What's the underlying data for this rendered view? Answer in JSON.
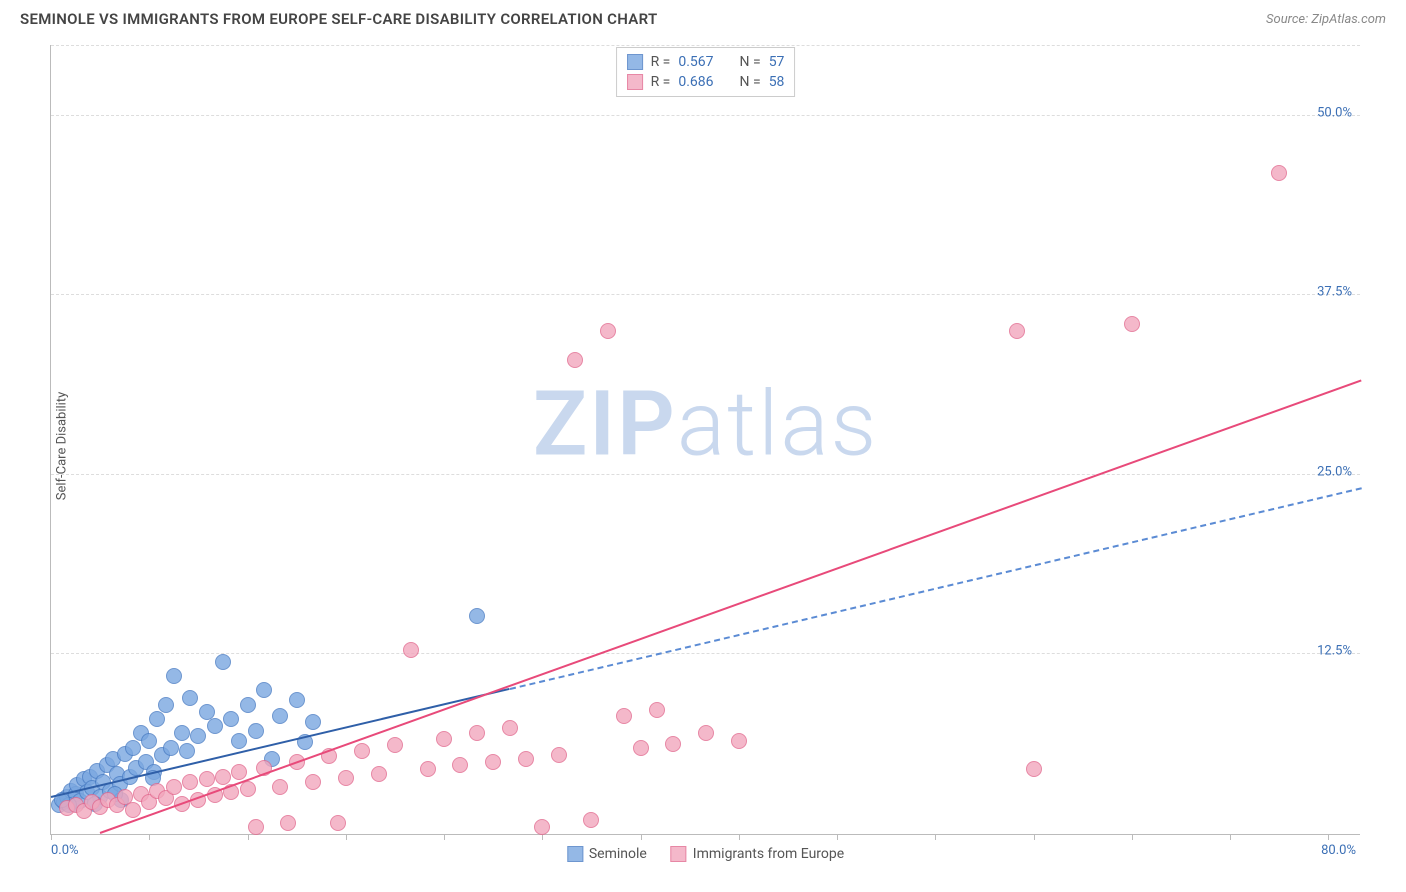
{
  "header": {
    "title": "SEMINOLE VS IMMIGRANTS FROM EUROPE SELF-CARE DISABILITY CORRELATION CHART",
    "source": "Source: ZipAtlas.com"
  },
  "watermark": {
    "part1": "ZIP",
    "part2": "atlas"
  },
  "chart": {
    "type": "scatter",
    "ylabel": "Self-Care Disability",
    "xlim": [
      0,
      80
    ],
    "ylim": [
      0,
      55
    ],
    "background_color": "#ffffff",
    "grid_color": "#dddddd",
    "axis_color": "#bbbbbb",
    "label_color": "#3b6fb5",
    "ylabel_color": "#555555",
    "title_fontsize": 15,
    "label_fontsize": 13,
    "yticks": [
      {
        "value": 12.5,
        "label": "12.5%"
      },
      {
        "value": 25.0,
        "label": "25.0%"
      },
      {
        "value": 37.5,
        "label": "37.5%"
      },
      {
        "value": 50.0,
        "label": "50.0%"
      }
    ],
    "xticks": [
      0,
      6,
      12,
      18,
      24,
      30,
      36,
      42,
      48,
      54,
      60,
      66,
      72,
      78
    ],
    "xorigin_label": "0.0%",
    "xmax_label": "80.0%",
    "marker_radius": 8,
    "marker_border_width": 1,
    "marker_fill_opacity": 0.35,
    "series": [
      {
        "key": "seminole",
        "name": "Seminole",
        "fill": "#7aa7e0",
        "stroke": "#4a7dc4",
        "line_color": "#2f5fa8",
        "line_width": 2,
        "line_style": "solid",
        "line_dashed_extension": true,
        "dash_color": "#5b8bd4",
        "r_value": "0.567",
        "n_value": "57",
        "trend": {
          "x1": 0,
          "y1": 2.5,
          "x2": 80,
          "y2": 24.0,
          "x_solid_end": 28
        },
        "points": [
          [
            0.5,
            2.0
          ],
          [
            0.8,
            2.2
          ],
          [
            1.0,
            2.6
          ],
          [
            1.2,
            3.0
          ],
          [
            1.4,
            2.1
          ],
          [
            1.5,
            2.8
          ],
          [
            1.6,
            3.4
          ],
          [
            1.8,
            2.3
          ],
          [
            2.0,
            3.8
          ],
          [
            2.2,
            2.9
          ],
          [
            2.4,
            4.0
          ],
          [
            2.5,
            3.2
          ],
          [
            2.8,
            4.4
          ],
          [
            3.0,
            2.6
          ],
          [
            3.2,
            3.6
          ],
          [
            3.4,
            4.8
          ],
          [
            3.6,
            3.0
          ],
          [
            3.8,
            5.2
          ],
          [
            4.0,
            4.2
          ],
          [
            4.2,
            3.5
          ],
          [
            4.5,
            5.6
          ],
          [
            4.8,
            4.0
          ],
          [
            5.0,
            6.0
          ],
          [
            5.2,
            4.6
          ],
          [
            5.5,
            7.0
          ],
          [
            5.8,
            5.0
          ],
          [
            6.0,
            6.5
          ],
          [
            6.3,
            4.3
          ],
          [
            6.5,
            8.0
          ],
          [
            6.8,
            5.5
          ],
          [
            7.0,
            9.0
          ],
          [
            7.3,
            6.0
          ],
          [
            7.5,
            11.0
          ],
          [
            8.0,
            7.0
          ],
          [
            8.3,
            5.8
          ],
          [
            8.5,
            9.5
          ],
          [
            9.0,
            6.8
          ],
          [
            9.5,
            8.5
          ],
          [
            10.0,
            7.5
          ],
          [
            10.5,
            12.0
          ],
          [
            11.0,
            8.0
          ],
          [
            11.5,
            6.5
          ],
          [
            12.0,
            9.0
          ],
          [
            12.5,
            7.2
          ],
          [
            13.0,
            10.0
          ],
          [
            14.0,
            8.2
          ],
          [
            15.0,
            9.3
          ],
          [
            16.0,
            7.8
          ],
          [
            15.5,
            6.4
          ],
          [
            13.5,
            5.2
          ],
          [
            4.3,
            2.4
          ],
          [
            2.7,
            2.1
          ],
          [
            1.1,
            2.0
          ],
          [
            0.7,
            2.4
          ],
          [
            3.9,
            2.8
          ],
          [
            6.2,
            3.9
          ],
          [
            26.0,
            15.2
          ]
        ]
      },
      {
        "key": "europe",
        "name": "Immigrants from Europe",
        "fill": "#f2a7bd",
        "stroke": "#e26a8f",
        "line_color": "#e84a7a",
        "line_width": 2,
        "line_style": "solid",
        "line_dashed_extension": false,
        "r_value": "0.686",
        "n_value": "58",
        "trend": {
          "x1": 3,
          "y1": 0,
          "x2": 80,
          "y2": 31.5,
          "x_solid_end": 80
        },
        "points": [
          [
            1.0,
            1.8
          ],
          [
            1.5,
            2.0
          ],
          [
            2.0,
            1.6
          ],
          [
            2.5,
            2.2
          ],
          [
            3.0,
            1.9
          ],
          [
            3.5,
            2.4
          ],
          [
            4.0,
            2.0
          ],
          [
            4.5,
            2.6
          ],
          [
            5.0,
            1.7
          ],
          [
            5.5,
            2.8
          ],
          [
            6.0,
            2.2
          ],
          [
            6.5,
            3.0
          ],
          [
            7.0,
            2.5
          ],
          [
            7.5,
            3.3
          ],
          [
            8.0,
            2.1
          ],
          [
            8.5,
            3.6
          ],
          [
            9.0,
            2.4
          ],
          [
            9.5,
            3.8
          ],
          [
            10.0,
            2.7
          ],
          [
            10.5,
            4.0
          ],
          [
            11.0,
            2.9
          ],
          [
            11.5,
            4.3
          ],
          [
            12.0,
            3.1
          ],
          [
            12.5,
            0.5
          ],
          [
            13.0,
            4.6
          ],
          [
            14.0,
            3.3
          ],
          [
            15.0,
            5.0
          ],
          [
            16.0,
            3.6
          ],
          [
            17.0,
            5.4
          ],
          [
            18.0,
            3.9
          ],
          [
            19.0,
            5.8
          ],
          [
            20.0,
            4.2
          ],
          [
            21.0,
            6.2
          ],
          [
            22.0,
            12.8
          ],
          [
            23.0,
            4.5
          ],
          [
            24.0,
            6.6
          ],
          [
            25.0,
            4.8
          ],
          [
            26.0,
            7.0
          ],
          [
            27.0,
            5.0
          ],
          [
            28.0,
            7.4
          ],
          [
            29.0,
            5.2
          ],
          [
            30.0,
            0.5
          ],
          [
            31.0,
            5.5
          ],
          [
            32.0,
            33.0
          ],
          [
            33.0,
            1.0
          ],
          [
            34.0,
            35.0
          ],
          [
            35.0,
            8.2
          ],
          [
            36.0,
            6.0
          ],
          [
            37.0,
            8.6
          ],
          [
            38.0,
            6.3
          ],
          [
            40.0,
            7.0
          ],
          [
            42.0,
            6.5
          ],
          [
            59.0,
            35.0
          ],
          [
            60.0,
            4.5
          ],
          [
            66.0,
            35.5
          ],
          [
            75.0,
            46.0
          ],
          [
            14.5,
            0.8
          ],
          [
            17.5,
            0.8
          ]
        ]
      }
    ],
    "stats_legend": {
      "r_label": "R =",
      "n_label": "N ="
    },
    "bottom_legend": {
      "items": [
        {
          "series": "seminole"
        },
        {
          "series": "europe"
        }
      ]
    }
  }
}
